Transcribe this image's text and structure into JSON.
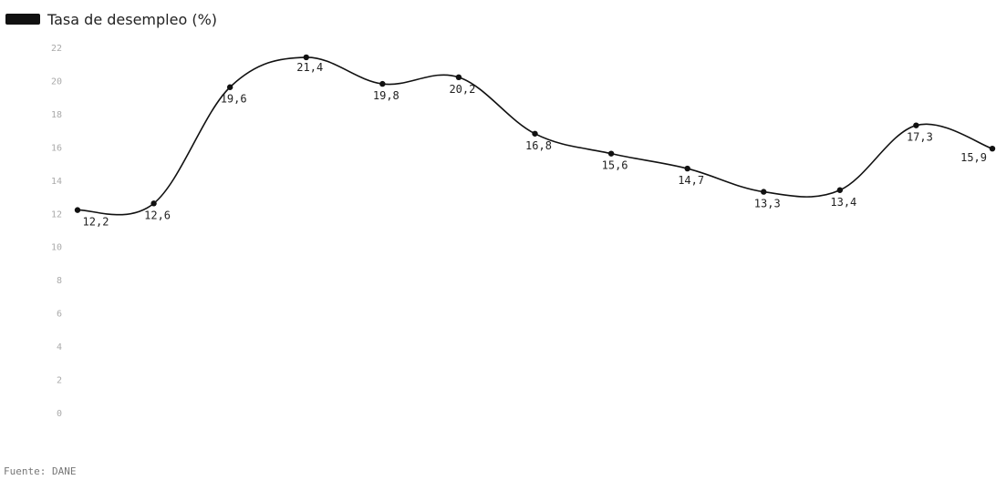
{
  "chart_data": {
    "type": "line",
    "categories": [
      "",
      "",
      "",
      "",
      "",
      "",
      "",
      "",
      "",
      "",
      "",
      "",
      ""
    ],
    "series": [
      {
        "name": "Tasa de desempleo (%)",
        "values": [
          12.2,
          12.6,
          19.6,
          21.4,
          19.8,
          20.2,
          16.8,
          15.6,
          14.7,
          13.3,
          13.4,
          17.3,
          15.9
        ],
        "labels": [
          "12,2",
          "12,6",
          "19,6",
          "21,4",
          "19,8",
          "20,2",
          "16,8",
          "15,6",
          "14,7",
          "13,3",
          "13,4",
          "17,3",
          "15,9"
        ],
        "color": "#111111"
      }
    ],
    "yticks": [
      0,
      2,
      4,
      6,
      8,
      10,
      12,
      14,
      16,
      18,
      20,
      22
    ],
    "ylim": [
      0,
      22
    ],
    "grid": false,
    "legend_position": "top-left"
  },
  "source_text": "Fuente: DANE"
}
